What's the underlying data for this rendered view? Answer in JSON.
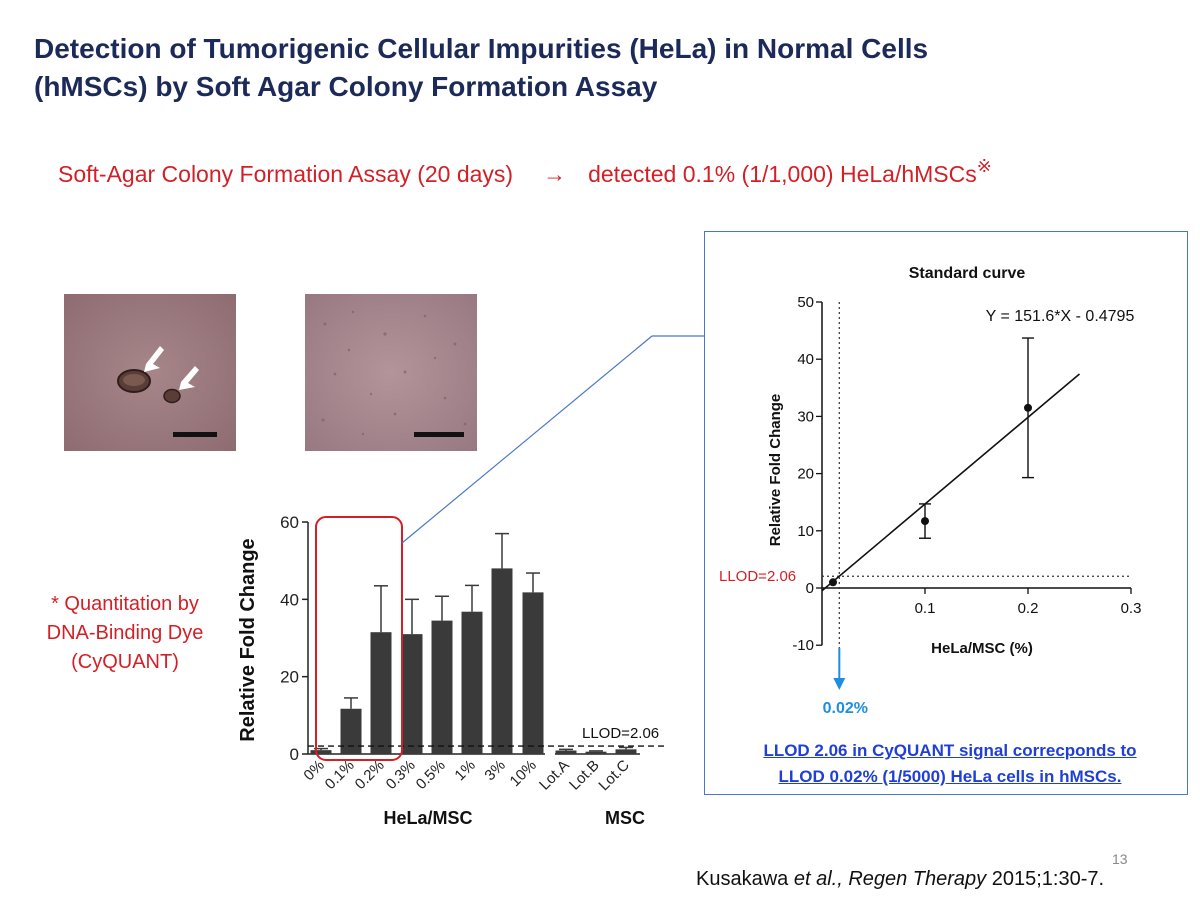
{
  "slide": {
    "title_line1": "Detection of Tumorigenic Cellular Impurities (HeLa) in Normal Cells",
    "title_line2": "(hMSCs) by Soft Agar Colony Formation Assay",
    "subtitle_left": "Soft-Agar Colony Formation Assay (20 days)",
    "subtitle_arrow": "→",
    "subtitle_right": "detected 0.1% (1/1,000) HeLa/hMSCs",
    "subtitle_mark": "※",
    "note_lines": [
      "* Quantitation by",
      "DNA-Binding Dye",
      "(CyQUANT)"
    ],
    "panel_note_line1": "LLOD 2.06 in CyQUANT signal correcponds to",
    "panel_note_line2": "LLOD 0.02% (1/5000) HeLa cells in hMSCs.",
    "page_number": "13",
    "citation_author": "Kusakawa ",
    "citation_etal": "et al., Regen Therapy",
    "citation_rest": " 2015;1:30-7.",
    "colors": {
      "title": "#1c2a5a",
      "accent_red": "#d41f26",
      "link_blue": "#1f3fd6",
      "panel_border": "#4a78c8",
      "bar": "#3a3a3a",
      "arrow_blue": "#1e8fe0",
      "agar": "#9c7a7e"
    }
  },
  "chart_data": [
    {
      "type": "bar",
      "ylabel": "Relative Fold Change",
      "ylim": [
        0,
        60
      ],
      "yticks": [
        0,
        20,
        40,
        60
      ],
      "groups": [
        {
          "label": "HeLa/MSC",
          "categories": [
            "0%",
            "0.1%",
            "0.2%",
            "0.3%",
            "0.5%",
            "1%",
            "3%",
            "10%"
          ]
        },
        {
          "label": "MSC",
          "categories": [
            "Lot.A",
            "Lot.B",
            "Lot.C"
          ]
        }
      ],
      "values": [
        1,
        11.7,
        31.5,
        31,
        34.5,
        36.8,
        48,
        41.8,
        0.9,
        0.6,
        1.2
      ],
      "errors": [
        0.4,
        2.8,
        12,
        9,
        6.3,
        6.8,
        9,
        5,
        0.3,
        0.2,
        0.5
      ],
      "reference_line": {
        "label": "LLOD=2.06",
        "value": 2.06
      },
      "highlight_categories": [
        "0%",
        "0.1%",
        "0.2%"
      ]
    },
    {
      "type": "scatter",
      "title": "Standard curve",
      "xlabel": "HeLa/MSC (%)",
      "ylabel": "Relative Fold Change",
      "xlim": [
        0,
        0.3
      ],
      "ylim": [
        -10,
        50
      ],
      "xticks": [
        0.1,
        0.2,
        0.3
      ],
      "yticks": [
        -10,
        0,
        10,
        20,
        30,
        40,
        50
      ],
      "points": [
        {
          "x": 0,
          "y": 1,
          "err": 0
        },
        {
          "x": 0.1,
          "y": 11.7,
          "err": 3
        },
        {
          "x": 0.2,
          "y": 31.5,
          "err": 12.2
        }
      ],
      "fit": {
        "equation": "Y = 151.6*X - 0.4795",
        "slope": 151.6,
        "intercept": -0.4795,
        "x_range": [
          0,
          0.25
        ]
      },
      "llod_line": {
        "label": "LLOD=2.06",
        "value": 2.06
      },
      "llod_x": {
        "label": "0.02%",
        "value": 0.0168
      }
    }
  ]
}
